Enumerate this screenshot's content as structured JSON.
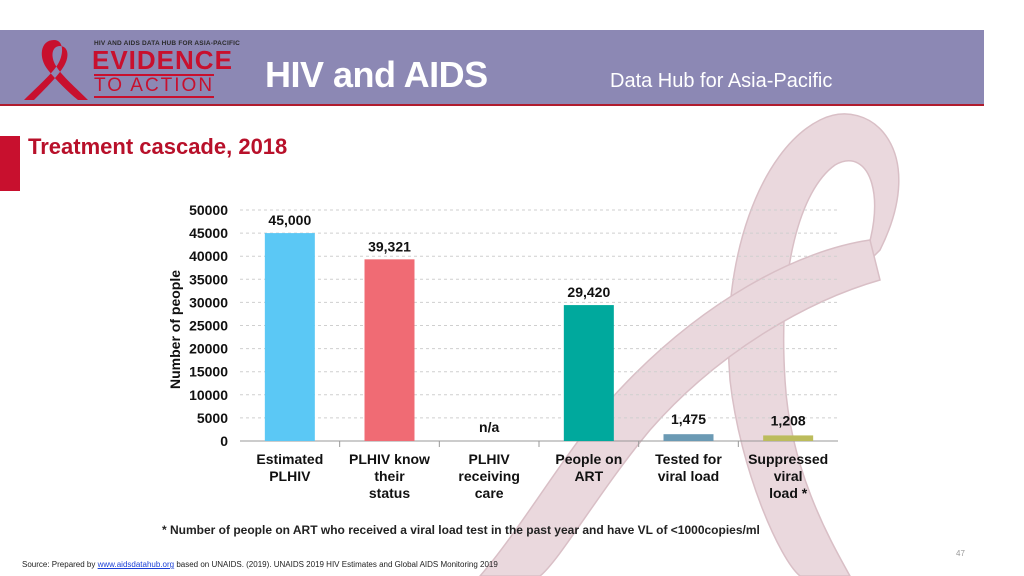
{
  "header": {
    "logo": {
      "tagline": "HIV AND AIDS DATA HUB FOR ASIA-PACIFIC",
      "word1": "EVIDENCE",
      "word2": "TO ACTION"
    },
    "title": "HIV and AIDS",
    "subtitle": "Data Hub for Asia-Pacific"
  },
  "slide": {
    "title": "Treatment cascade, 2018",
    "footnote": "* Number of people on ART who received a viral load test in the past year and have VL of <1000copies/ml",
    "page_number": "47",
    "source": {
      "prefix": "Source: Prepared by ",
      "link": "www.aidsdatahub.org",
      "suffix": "  based on UNAIDS. (2019). UNAIDS 2019 HIV Estimates and Global AIDS Monitoring 2019"
    }
  },
  "colors": {
    "header_band": "#8c88b4",
    "accent_red": "#c8102e",
    "ribbon_fill": "#ead8dd"
  },
  "chart_data": {
    "type": "bar",
    "title": "",
    "xlabel": "",
    "ylabel": "Number of people",
    "ylim": [
      0,
      50000
    ],
    "yticks": [
      "0",
      "5000",
      "10000",
      "15000",
      "20000",
      "25000",
      "30000",
      "35000",
      "40000",
      "45000",
      "50000"
    ],
    "grid": true,
    "categories": [
      [
        "Estimated",
        "PLHIV"
      ],
      [
        "PLHIV know",
        "their",
        "status"
      ],
      [
        "PLHIV",
        "receiving",
        "care"
      ],
      [
        "People on",
        "ART"
      ],
      [
        "Tested for",
        "viral load"
      ],
      [
        "Suppressed",
        "viral",
        "load *"
      ]
    ],
    "values": [
      45000,
      39321,
      null,
      29420,
      1475,
      1208
    ],
    "data_labels": [
      "45,000",
      "39,321",
      "n/a",
      "29,420",
      "1,475",
      "1,208"
    ],
    "bar_colors": [
      "#5bc8f5",
      "#f06b74",
      "#cccccc",
      "#00a99d",
      "#6b9ab4",
      "#bcbc5c"
    ]
  }
}
